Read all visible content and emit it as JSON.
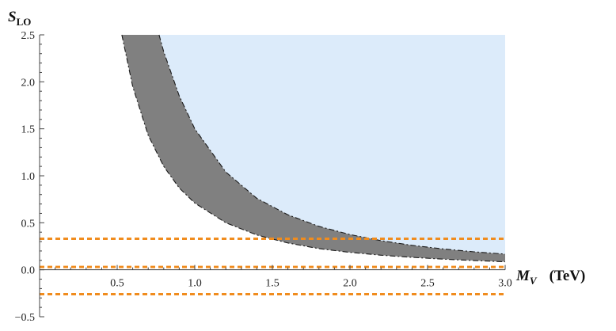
{
  "chart_data": {
    "type": "area",
    "title": "",
    "xlabel": {
      "main": "M",
      "sub": "V",
      "unit": "(TeV)"
    },
    "ylabel": {
      "main": "S",
      "sub": "LO"
    },
    "xlim": [
      0,
      3.0
    ],
    "ylim": [
      -0.5,
      2.5
    ],
    "x_ticks": [
      "0.5",
      "1.0",
      "1.5",
      "2.0",
      "2.5",
      "3.0"
    ],
    "y_ticks": [
      "-0.5",
      "0.0",
      "0.5",
      "1.0",
      "1.5",
      "2.0",
      "2.5"
    ],
    "grid": false,
    "legend": "none",
    "series": [
      {
        "band": "upper-region",
        "color": "#dcebfa",
        "x": [
          0.77,
          0.8,
          0.9,
          1.0,
          1.2,
          1.4,
          1.6,
          1.8,
          2.0,
          2.2,
          2.4,
          2.6,
          2.8,
          3.0
        ],
        "y": [
          2.5,
          2.32,
          1.85,
          1.5,
          1.04,
          0.76,
          0.585,
          0.462,
          0.375,
          0.31,
          0.26,
          0.222,
          0.191,
          0.167
        ]
      },
      {
        "band": "gray-band",
        "color": "#808080",
        "x_upper": [
          0.77,
          0.8,
          0.9,
          1.0,
          1.2,
          1.4,
          1.6,
          1.8,
          2.0,
          2.2,
          2.4,
          2.6,
          2.8,
          3.0
        ],
        "y_upper": [
          2.5,
          2.32,
          1.85,
          1.5,
          1.04,
          0.76,
          0.585,
          0.462,
          0.375,
          0.31,
          0.26,
          0.222,
          0.191,
          0.167
        ],
        "x_lower": [
          0.53,
          0.6,
          0.7,
          0.8,
          0.9,
          1.0,
          1.2,
          1.4,
          1.6,
          1.8,
          2.0,
          2.2,
          2.4,
          2.6,
          2.8,
          3.0
        ],
        "y_lower": [
          2.5,
          1.95,
          1.43,
          1.1,
          0.87,
          0.71,
          0.5,
          0.37,
          0.285,
          0.225,
          0.185,
          0.155,
          0.132,
          0.113,
          0.098,
          0.085
        ]
      }
    ],
    "reference_lines": [
      {
        "y": 0.33,
        "color": "#f08c1e",
        "style": "dashed"
      },
      {
        "y": 0.03,
        "color": "#f08c1e",
        "style": "dashed"
      },
      {
        "y": -0.26,
        "color": "#f08c1e",
        "style": "dashed"
      }
    ]
  }
}
